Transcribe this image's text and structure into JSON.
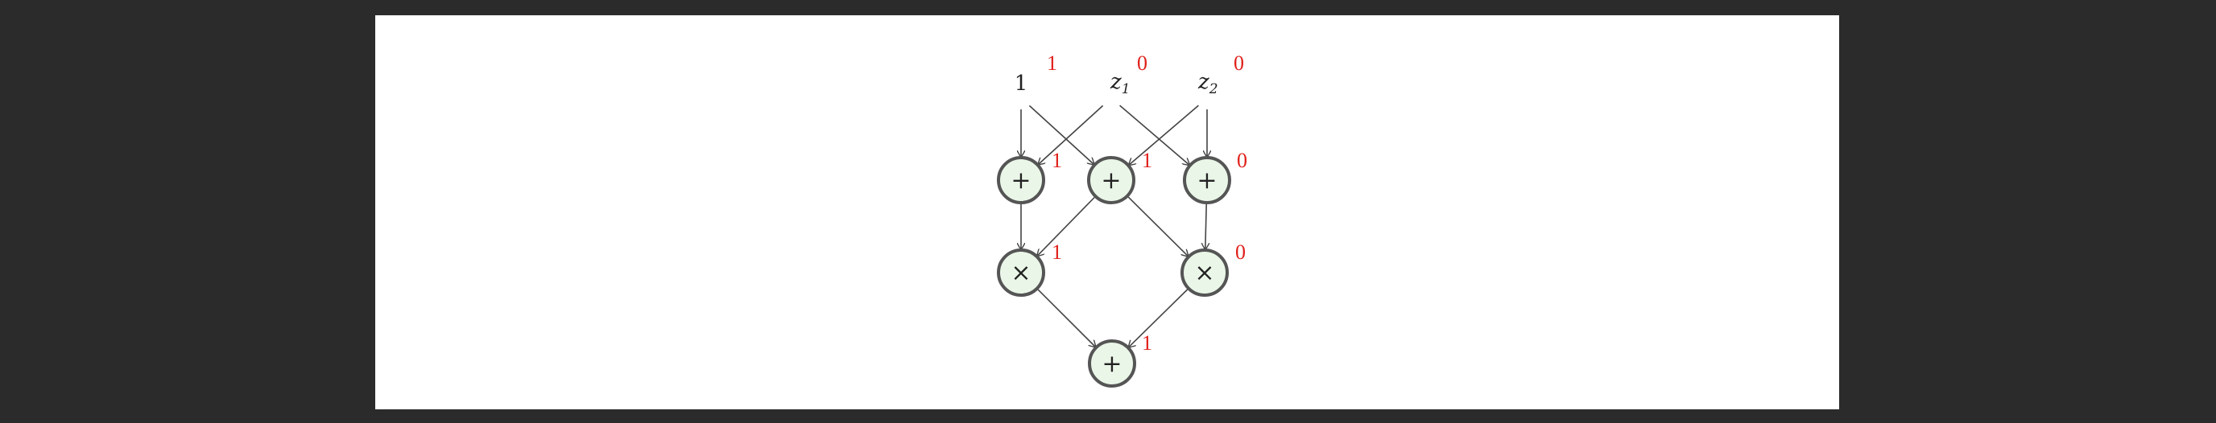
{
  "inputs": [
    {
      "id": "one",
      "label": "1",
      "sub": "",
      "value": "1"
    },
    {
      "id": "z1",
      "label": "z",
      "sub": "1",
      "value": "0"
    },
    {
      "id": "z2",
      "label": "z",
      "sub": "2",
      "value": "0"
    }
  ],
  "nodes": [
    {
      "id": "plus1",
      "op": "+",
      "value": "1"
    },
    {
      "id": "plus2",
      "op": "+",
      "value": "1"
    },
    {
      "id": "plus3",
      "op": "+",
      "value": "0"
    },
    {
      "id": "times1",
      "op": "×",
      "value": "1"
    },
    {
      "id": "times2",
      "op": "×",
      "value": "0"
    },
    {
      "id": "plus_out",
      "op": "+",
      "value": "1"
    }
  ],
  "edges": [
    [
      "one",
      "plus1"
    ],
    [
      "one",
      "plus2"
    ],
    [
      "z1",
      "plus1"
    ],
    [
      "z1",
      "plus3"
    ],
    [
      "z2",
      "plus2"
    ],
    [
      "z2",
      "plus3"
    ],
    [
      "plus1",
      "times1"
    ],
    [
      "plus2",
      "times1"
    ],
    [
      "plus2",
      "times2"
    ],
    [
      "plus3",
      "times2"
    ],
    [
      "times1",
      "plus_out"
    ],
    [
      "times2",
      "plus_out"
    ]
  ],
  "colors": {
    "node_fill": "#eaf7e8",
    "node_stroke": "#555555",
    "value": "#e0201b",
    "edge": "#444444"
  }
}
